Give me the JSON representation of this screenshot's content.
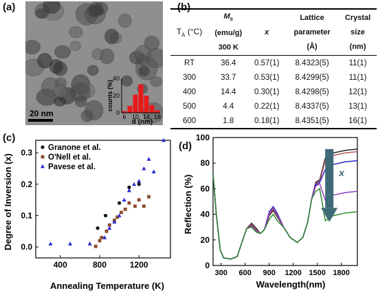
{
  "panel_letters": {
    "a": "(a)",
    "b": "(b)",
    "c": "(c)",
    "d": "(d)"
  },
  "panel_a": {
    "scale_bar": "20 nm",
    "inset": {
      "ylabel": "counts (%)",
      "xlabel": "d (nm)",
      "yticks": [
        "0",
        "20",
        "40"
      ],
      "xticks": [
        "6",
        "10",
        "14",
        "18"
      ],
      "bar_color": "#e8191b",
      "bins": [
        {
          "d": 6,
          "count": 2
        },
        {
          "d": 8,
          "count": 8
        },
        {
          "d": 10,
          "count": 21
        },
        {
          "d": 12,
          "count": 33
        },
        {
          "d": 14,
          "count": 20
        },
        {
          "d": 16,
          "count": 9
        },
        {
          "d": 18,
          "count": 3
        }
      ]
    }
  },
  "panel_b": {
    "headers": [
      {
        "main": "T",
        "sub": "A",
        "rest": " (°C)"
      },
      {
        "line1": "M",
        "sub": "s",
        "line2": "(emu/g)",
        "line3": "300 K"
      },
      {
        "line1": "x"
      },
      {
        "line1": "Lattice",
        "line2": "parameter",
        "line3": "(Å)"
      },
      {
        "line1": "Crystal",
        "line2": "size",
        "line3": "(nm)"
      }
    ],
    "rows": [
      [
        "RT",
        "36.4",
        "0.57(1)",
        "8.4323(5)",
        "11(1)"
      ],
      [
        "300",
        "33.7",
        "0.53(1)",
        "8.4299(5)",
        "11(1)"
      ],
      [
        "400",
        "14.4",
        "0.30(1)",
        "8.4298(5)",
        "12(1)"
      ],
      [
        "500",
        "4.4",
        "0.22(1)",
        "8.4337(5)",
        "13(1)"
      ],
      [
        "600",
        "1.8",
        "0.18(1)",
        "8.4351(5)",
        "16(1)"
      ]
    ]
  },
  "chart_data": [
    {
      "panel": "c",
      "type": "scatter",
      "xlabel": "Annealing Temperature (K)",
      "ylabel": "Degree of Inversion (x)",
      "xlim": [
        150,
        1520
      ],
      "ylim": [
        -0.035,
        0.34
      ],
      "xticks": [
        400,
        800,
        1200
      ],
      "yticks": [
        0.0,
        0.1,
        0.2,
        0.3
      ],
      "ytick_labels": [
        "0.0",
        "0.1",
        "0.2",
        "0.3"
      ],
      "legend_position": "top-left",
      "series": [
        {
          "name": "Granone et al.",
          "marker": "circle",
          "color": "#111111",
          "points": [
            [
              780,
              0.06
            ],
            [
              860,
              0.1
            ],
            [
              1000,
              0.14
            ],
            [
              1100,
              0.19
            ],
            [
              1200,
              0.2
            ]
          ]
        },
        {
          "name": "O'Nell et al.",
          "marker": "square",
          "color": "#8b4a2b",
          "points": [
            [
              760,
              0.002
            ],
            [
              800,
              0.02
            ],
            [
              820,
              0.03
            ],
            [
              870,
              0.05
            ],
            [
              900,
              0.07
            ],
            [
              950,
              0.085
            ],
            [
              980,
              0.095
            ],
            [
              1020,
              0.11
            ],
            [
              1060,
              0.12
            ],
            [
              1100,
              0.14
            ],
            [
              1160,
              0.13
            ],
            [
              1200,
              0.15
            ],
            [
              1250,
              0.13
            ],
            [
              1300,
              0.16
            ]
          ]
        },
        {
          "name": "Pavese et al.",
          "marker": "triangle",
          "color": "#2b2bd6",
          "points": [
            [
              300,
              0.01
            ],
            [
              500,
              0.01
            ],
            [
              700,
              0.01
            ],
            [
              850,
              0.03
            ],
            [
              900,
              0.06
            ],
            [
              950,
              0.08
            ],
            [
              1000,
              0.1
            ],
            [
              1050,
              0.15
            ],
            [
              1100,
              0.18
            ],
            [
              1150,
              0.2
            ],
            [
              1200,
              0.21
            ],
            [
              1250,
              0.25
            ],
            [
              1300,
              0.28
            ],
            [
              1350,
              0.24
            ],
            [
              1450,
              0.34
            ]
          ]
        }
      ]
    },
    {
      "panel": "d",
      "type": "line",
      "xlabel": "Wavelength(nm)",
      "ylabel": "Reflection (%)",
      "xlim": [
        200,
        2000
      ],
      "ylim": [
        0,
        100
      ],
      "xticks": [
        300,
        600,
        900,
        1200,
        1500,
        1800
      ],
      "yticks": [
        0,
        20,
        40,
        60,
        80,
        100
      ],
      "annotation": "x",
      "arrow_color": "#3f6b78",
      "series": [
        {
          "color": "#222222",
          "plateau": 90,
          "peak1": 33,
          "peak2": 43,
          "mid": 65
        },
        {
          "color": "#b05656",
          "plateau": 88,
          "peak1": 32,
          "peak2": 44,
          "mid": 64
        },
        {
          "color": "#2929c7",
          "plateau": 81,
          "peak1": 31,
          "peak2": 46,
          "mid": 63
        },
        {
          "color": "#8f3fbf",
          "plateau": 57,
          "peak1": 31,
          "peak2": 45,
          "mid": 62
        },
        {
          "color": "#2f8a2f",
          "plateau": 41,
          "peak1": 30,
          "peak2": 40,
          "mid": 58
        }
      ]
    }
  ]
}
